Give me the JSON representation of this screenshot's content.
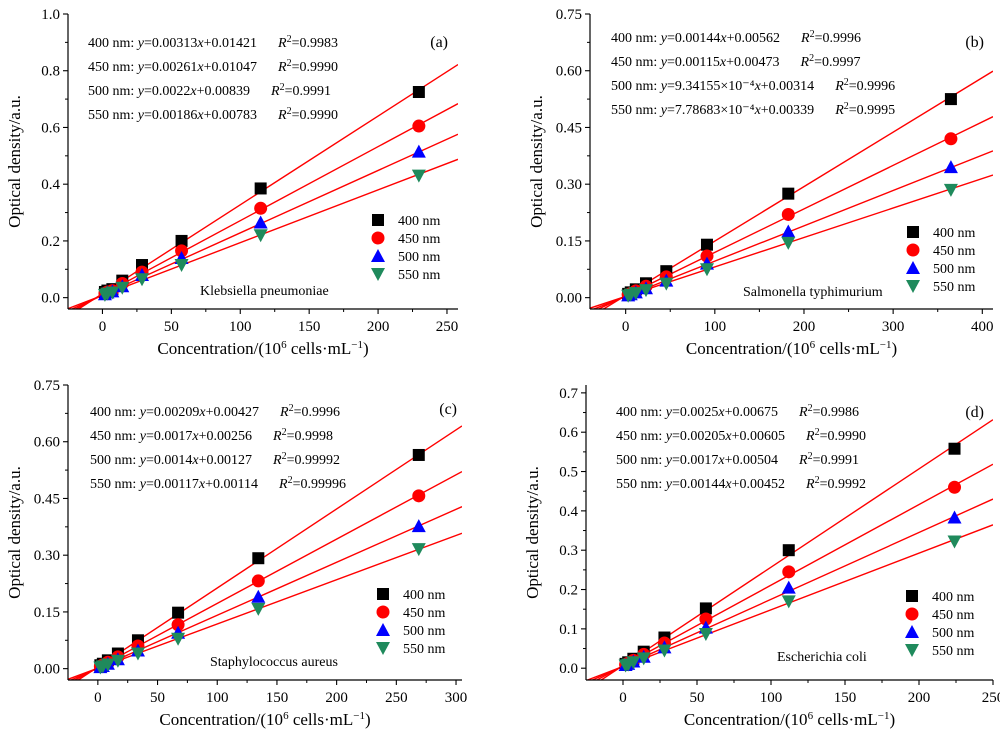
{
  "figure": {
    "xlabel_main": "Concentration/(10",
    "xlabel_exp": "6",
    "xlabel_unit": " cells·mL",
    "xlabel_unit_exp": "−1",
    "xlabel_close": ")",
    "ylabel": "Optical density/a.u."
  },
  "legend": {
    "items": [
      {
        "label": "400 nm",
        "marker": "square",
        "color": "#000000"
      },
      {
        "label": "450 nm",
        "marker": "circle",
        "color": "#ff0000"
      },
      {
        "label": "500 nm",
        "marker": "triangle-up",
        "color": "#0000ff"
      },
      {
        "label": "550 nm",
        "marker": "triangle-down",
        "color": "#1f8a5c"
      }
    ]
  },
  "fit_line_color": "#ff0000",
  "chart_data": [
    {
      "type": "scatter",
      "panel_label": "(a)",
      "species": "Klebsiella pneumoniae",
      "xlabel": "Concentration/(10^6 cells·mL^-1)",
      "ylabel": "Optical density/a.u.",
      "xlim": [
        -25,
        258
      ],
      "ylim": [
        -0.04,
        1.0
      ],
      "xticks": [
        0,
        50,
        100,
        150,
        200,
        250
      ],
      "xtick_labels": [
        "0",
        "50",
        "100",
        "150",
        "200",
        "250"
      ],
      "yticks": [
        0.0,
        0.2,
        0.4,
        0.6,
        0.8,
        1.0
      ],
      "ytick_labels": [
        "0.0",
        "0.2",
        "0.4",
        "0.6",
        "0.8",
        "1.0"
      ],
      "x": [
        1.8,
        3.6,
        7.2,
        14.4,
        28.7,
        57.4,
        114.8,
        229.6
      ],
      "equations": [
        {
          "wl": "400 nm: ",
          "eq": "y=0.00313x+0.01421",
          "r2": "=0.9983"
        },
        {
          "wl": "450 nm: ",
          "eq": "y=0.00261x+0.01047",
          "r2": "=0.9990"
        },
        {
          "wl": "500 nm: ",
          "eq": "y=0.0022x+0.00839",
          "r2": "=0.9991"
        },
        {
          "wl": "550 nm: ",
          "eq": "y=0.00186x+0.00783",
          "r2": "=0.9990"
        }
      ],
      "series": [
        {
          "name": "400 nm",
          "slope": 0.00313,
          "intercept": 0.01421,
          "values": [
            0.02,
            0.025,
            0.03,
            0.06,
            0.115,
            0.2,
            0.385,
            0.725
          ]
        },
        {
          "name": "450 nm",
          "slope": 0.00261,
          "intercept": 0.01047,
          "values": [
            0.015,
            0.02,
            0.025,
            0.05,
            0.09,
            0.165,
            0.315,
            0.605
          ]
        },
        {
          "name": "500 nm",
          "slope": 0.0022,
          "intercept": 0.00839,
          "values": [
            0.012,
            0.018,
            0.022,
            0.04,
            0.08,
            0.14,
            0.265,
            0.515
          ]
        },
        {
          "name": "550 nm",
          "slope": 0.00186,
          "intercept": 0.00783,
          "values": [
            0.01,
            0.014,
            0.018,
            0.035,
            0.065,
            0.115,
            0.22,
            0.43
          ]
        }
      ]
    },
    {
      "type": "scatter",
      "panel_label": "(b)",
      "species": "Salmonella typhimurium",
      "xlabel": "Concentration/(10^6 cells·mL^-1)",
      "ylabel": "Optical density/a.u.",
      "xlim": [
        -40,
        412
      ],
      "ylim": [
        -0.03,
        0.75
      ],
      "xticks": [
        0,
        100,
        200,
        300,
        400
      ],
      "xtick_labels": [
        "0",
        "100",
        "200",
        "300",
        "400"
      ],
      "yticks": [
        0.0,
        0.15,
        0.3,
        0.45,
        0.6,
        0.75
      ],
      "ytick_labels": [
        "0.00",
        "0.15",
        "0.30",
        "0.45",
        "0.60",
        "0.75"
      ],
      "x": [
        2.8,
        5.7,
        11.4,
        22.8,
        45.6,
        91.2,
        182.4,
        364.8
      ],
      "equations": [
        {
          "wl": "400 nm: ",
          "eq": "y=0.00144x+0.00562",
          "r2": "=0.9996"
        },
        {
          "wl": "450 nm: ",
          "eq": "y=0.00115x+0.00473",
          "r2": "=0.9997"
        },
        {
          "wl": "500 nm: ",
          "eq": "y=9.34155×10⁻⁴x+0.00314",
          "r2": "=0.9996"
        },
        {
          "wl": "550 nm: ",
          "eq": "y=7.78683×10⁻⁴x+0.00339",
          "r2": "=0.9995"
        }
      ],
      "series": [
        {
          "name": "400 nm",
          "slope": 0.00144,
          "intercept": 0.00562,
          "values": [
            0.01,
            0.014,
            0.022,
            0.038,
            0.07,
            0.14,
            0.275,
            0.525
          ]
        },
        {
          "name": "450 nm",
          "slope": 0.00115,
          "intercept": 0.00473,
          "values": [
            0.008,
            0.011,
            0.018,
            0.03,
            0.055,
            0.11,
            0.22,
            0.42
          ]
        },
        {
          "name": "500 nm",
          "slope": 0.000934155,
          "intercept": 0.00314,
          "values": [
            0.006,
            0.009,
            0.014,
            0.025,
            0.045,
            0.09,
            0.175,
            0.345
          ]
        },
        {
          "name": "550 nm",
          "slope": 0.000778683,
          "intercept": 0.00339,
          "values": [
            0.005,
            0.008,
            0.012,
            0.02,
            0.037,
            0.075,
            0.145,
            0.285
          ]
        }
      ]
    },
    {
      "type": "scatter",
      "panel_label": "(c)",
      "species": "Staphylococcus aureus",
      "xlabel": "Concentration/(10^6 cells·mL^-1)",
      "ylabel": "Optical density/a.u.",
      "xlim": [
        -25,
        305
      ],
      "ylim": [
        -0.03,
        0.75
      ],
      "xticks": [
        0,
        50,
        100,
        150,
        200,
        250,
        300
      ],
      "xtick_labels": [
        "0",
        "50",
        "100",
        "150",
        "200",
        "250",
        "300"
      ],
      "yticks": [
        0.0,
        0.15,
        0.3,
        0.45,
        0.6,
        0.75
      ],
      "ytick_labels": [
        "0.00",
        "0.15",
        "0.30",
        "0.45",
        "0.60",
        "0.75"
      ],
      "x": [
        2.1,
        4.2,
        8.4,
        16.8,
        33.6,
        67.2,
        134.4,
        268.8
      ],
      "equations": [
        {
          "wl": "400 nm: ",
          "eq": "y=0.00209x+0.00427",
          "r2": "=0.9996"
        },
        {
          "wl": "450 nm: ",
          "eq": "y=0.0017x+0.00256",
          "r2": "=0.9998"
        },
        {
          "wl": "500 nm: ",
          "eq": "y=0.0014x+0.00127",
          "r2": "=0.99992"
        },
        {
          "wl": "550 nm: ",
          "eq": "y=0.00117x+0.00114",
          "r2": "=0.99996"
        }
      ],
      "series": [
        {
          "name": "400 nm",
          "slope": 0.00209,
          "intercept": 0.00427,
          "values": [
            0.009,
            0.013,
            0.022,
            0.04,
            0.075,
            0.148,
            0.292,
            0.565
          ]
        },
        {
          "name": "450 nm",
          "slope": 0.0017,
          "intercept": 0.00256,
          "values": [
            0.006,
            0.01,
            0.017,
            0.031,
            0.06,
            0.116,
            0.232,
            0.457
          ]
        },
        {
          "name": "500 nm",
          "slope": 0.0014,
          "intercept": 0.00127,
          "values": [
            0.004,
            0.007,
            0.013,
            0.025,
            0.048,
            0.095,
            0.19,
            0.377
          ]
        },
        {
          "name": "550 nm",
          "slope": 0.00117,
          "intercept": 0.00114,
          "values": [
            0.003,
            0.006,
            0.011,
            0.021,
            0.04,
            0.079,
            0.158,
            0.316
          ]
        }
      ]
    },
    {
      "type": "scatter",
      "panel_label": "(d)",
      "species": "Escherichia coli",
      "xlabel": "Concentration/(10^6 cells·mL^-1)",
      "ylabel": "Optical density/a.u.",
      "xlim": [
        -25,
        250
      ],
      "ylim": [
        -0.03,
        0.72
      ],
      "xticks": [
        0,
        50,
        100,
        150,
        200,
        250
      ],
      "xtick_labels": [
        "0",
        "50",
        "100",
        "150",
        "200",
        "250"
      ],
      "yticks": [
        0.0,
        0.1,
        0.2,
        0.3,
        0.4,
        0.5,
        0.6,
        0.7
      ],
      "ytick_labels": [
        "0.0",
        "0.1",
        "0.2",
        "0.3",
        "0.4",
        "0.5",
        "0.6",
        "0.7"
      ],
      "x": [
        1.75,
        3.5,
        7.0,
        14.0,
        28.0,
        56.0,
        112.0,
        224.0
      ],
      "equations": [
        {
          "wl": "400 nm: ",
          "eq": "y=0.0025x+0.00675",
          "r2": "=0.9986"
        },
        {
          "wl": "450 nm: ",
          "eq": "y=0.00205x+0.00605",
          "r2": "=0.9990"
        },
        {
          "wl": "500 nm: ",
          "eq": "y=0.0017x+0.00504",
          "r2": "=0.9991"
        },
        {
          "wl": "550 nm: ",
          "eq": "y=0.00144x+0.00452",
          "r2": "=0.9992"
        }
      ],
      "series": [
        {
          "name": "400 nm",
          "slope": 0.0025,
          "intercept": 0.00675,
          "values": [
            0.011,
            0.015,
            0.024,
            0.042,
            0.078,
            0.152,
            0.3,
            0.558
          ]
        },
        {
          "name": "450 nm",
          "slope": 0.00205,
          "intercept": 0.00605,
          "values": [
            0.009,
            0.013,
            0.02,
            0.035,
            0.064,
            0.125,
            0.245,
            0.46
          ]
        },
        {
          "name": "500 nm",
          "slope": 0.0017,
          "intercept": 0.00504,
          "values": [
            0.008,
            0.011,
            0.017,
            0.029,
            0.053,
            0.103,
            0.205,
            0.383
          ]
        },
        {
          "name": "550 nm",
          "slope": 0.00144,
          "intercept": 0.00452,
          "values": [
            0.007,
            0.009,
            0.015,
            0.025,
            0.045,
            0.087,
            0.17,
            0.322
          ]
        }
      ]
    }
  ]
}
